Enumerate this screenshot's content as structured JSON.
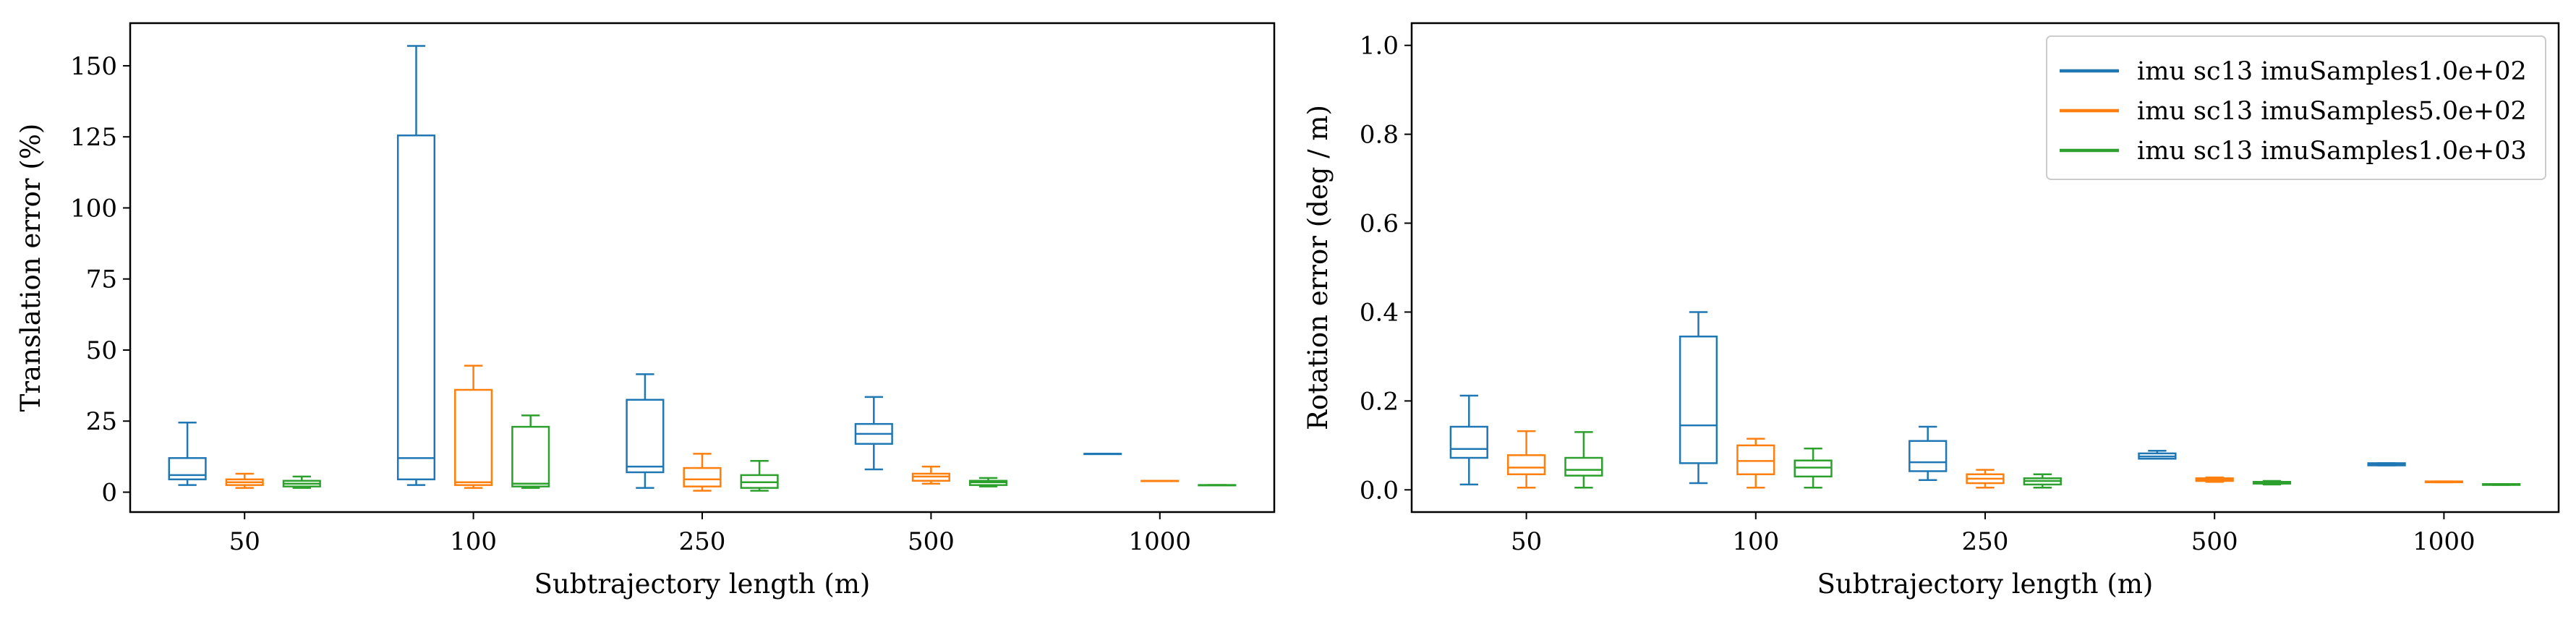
{
  "chart_data": [
    {
      "type": "box",
      "xlabel": "Subtrajectory length (m)",
      "ylabel": "Translation error (%)",
      "categories": [
        "50",
        "100",
        "250",
        "500",
        "1000"
      ],
      "ylim": [
        -7,
        165
      ],
      "yticks": [
        0,
        25,
        50,
        75,
        100,
        125,
        150
      ],
      "grid": false,
      "series": [
        {
          "name": "imu sc13 imuSamples1.0e+02",
          "color": "#1f77b4",
          "boxes": [
            {
              "whislo": 2.5,
              "q1": 4.5,
              "med": 6,
              "q3": 12,
              "whishi": 24.5
            },
            {
              "whislo": 2.5,
              "q1": 4.5,
              "med": 12,
              "q3": 125.5,
              "whishi": 157
            },
            {
              "whislo": 1.5,
              "q1": 7,
              "med": 9,
              "q3": 32.5,
              "whishi": 41.5
            },
            {
              "whislo": 8,
              "q1": 17,
              "med": 20.5,
              "q3": 24,
              "whishi": 33.5
            },
            {
              "whislo": 13.5,
              "q1": 13.5,
              "med": 13.5,
              "q3": 13.5,
              "whishi": 13.5
            }
          ]
        },
        {
          "name": "imu sc13 imuSamples5.0e+02",
          "color": "#ff7f0e",
          "boxes": [
            {
              "whislo": 1.5,
              "q1": 2.5,
              "med": 3.5,
              "q3": 4.5,
              "whishi": 6.5
            },
            {
              "whislo": 1.5,
              "q1": 2.5,
              "med": 3.5,
              "q3": 36,
              "whishi": 44.5
            },
            {
              "whislo": 0.5,
              "q1": 2,
              "med": 4.5,
              "q3": 8.5,
              "whishi": 13.5
            },
            {
              "whislo": 3,
              "q1": 4,
              "med": 5.5,
              "q3": 6.5,
              "whishi": 9
            },
            {
              "whislo": 4,
              "q1": 4,
              "med": 4,
              "q3": 4,
              "whishi": 4
            }
          ]
        },
        {
          "name": "imu sc13 imuSamples1.0e+03",
          "color": "#2ca02c",
          "boxes": [
            {
              "whislo": 1.5,
              "q1": 2,
              "med": 3,
              "q3": 4,
              "whishi": 5.5
            },
            {
              "whislo": 1.5,
              "q1": 2,
              "med": 3,
              "q3": 23,
              "whishi": 27
            },
            {
              "whislo": 0.5,
              "q1": 1.5,
              "med": 3.5,
              "q3": 6,
              "whishi": 11
            },
            {
              "whislo": 2,
              "q1": 2.5,
              "med": 3.5,
              "q3": 4,
              "whishi": 5
            },
            {
              "whislo": 2.5,
              "q1": 2.5,
              "med": 2.5,
              "q3": 2.5,
              "whishi": 2.5
            }
          ]
        }
      ]
    },
    {
      "type": "box",
      "xlabel": "Subtrajectory length (m)",
      "ylabel": "Rotation error (deg / m)",
      "categories": [
        "50",
        "100",
        "250",
        "500",
        "1000"
      ],
      "ylim": [
        -0.05,
        1.05
      ],
      "yticks": [
        0.0,
        0.2,
        0.4,
        0.6,
        0.8,
        1.0
      ],
      "grid": false,
      "legend": "top-right",
      "series": [
        {
          "name": "imu sc13 imuSamples1.0e+02",
          "color": "#1f77b4",
          "boxes": [
            {
              "whislo": 0.012,
              "q1": 0.072,
              "med": 0.092,
              "q3": 0.142,
              "whishi": 0.212
            },
            {
              "whislo": 0.015,
              "q1": 0.06,
              "med": 0.145,
              "q3": 0.345,
              "whishi": 0.4
            },
            {
              "whislo": 0.022,
              "q1": 0.042,
              "med": 0.062,
              "q3": 0.11,
              "whishi": 0.142
            },
            {
              "whislo": 0.07,
              "q1": 0.07,
              "med": 0.075,
              "q3": 0.082,
              "whishi": 0.088
            },
            {
              "whislo": 0.055,
              "q1": 0.055,
              "med": 0.057,
              "q3": 0.06,
              "whishi": 0.06
            }
          ]
        },
        {
          "name": "imu sc13 imuSamples5.0e+02",
          "color": "#ff7f0e",
          "boxes": [
            {
              "whislo": 0.005,
              "q1": 0.035,
              "med": 0.05,
              "q3": 0.078,
              "whishi": 0.132
            },
            {
              "whislo": 0.005,
              "q1": 0.035,
              "med": 0.065,
              "q3": 0.1,
              "whishi": 0.115
            },
            {
              "whislo": 0.005,
              "q1": 0.015,
              "med": 0.025,
              "q3": 0.035,
              "whishi": 0.045
            },
            {
              "whislo": 0.018,
              "q1": 0.02,
              "med": 0.023,
              "q3": 0.026,
              "whishi": 0.028
            },
            {
              "whislo": 0.017,
              "q1": 0.017,
              "med": 0.018,
              "q3": 0.019,
              "whishi": 0.019
            }
          ]
        },
        {
          "name": "imu sc13 imuSamples1.0e+03",
          "color": "#2ca02c",
          "boxes": [
            {
              "whislo": 0.005,
              "q1": 0.032,
              "med": 0.045,
              "q3": 0.072,
              "whishi": 0.13
            },
            {
              "whislo": 0.005,
              "q1": 0.03,
              "med": 0.05,
              "q3": 0.066,
              "whishi": 0.093
            },
            {
              "whislo": 0.005,
              "q1": 0.012,
              "med": 0.02,
              "q3": 0.026,
              "whishi": 0.035
            },
            {
              "whislo": 0.012,
              "q1": 0.014,
              "med": 0.016,
              "q3": 0.018,
              "whishi": 0.02
            },
            {
              "whislo": 0.011,
              "q1": 0.011,
              "med": 0.012,
              "q3": 0.013,
              "whishi": 0.013
            }
          ]
        }
      ]
    }
  ]
}
